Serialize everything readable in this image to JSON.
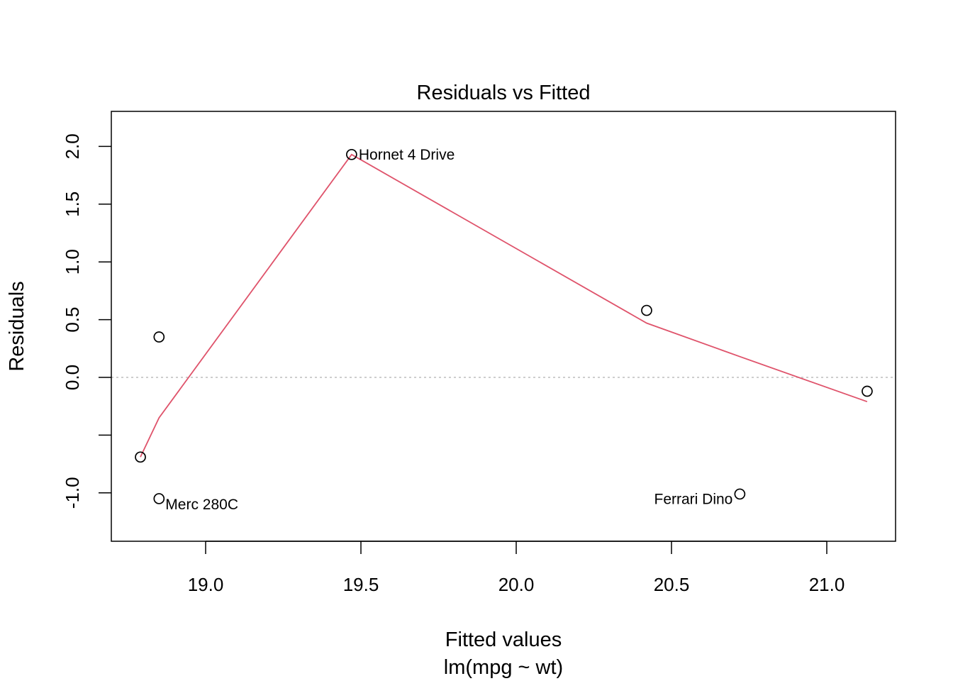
{
  "chart_data": {
    "type": "scatter",
    "title": "Residuals vs Fitted",
    "xlabel": "Fitted values",
    "subtitle": "lm(mpg ~ wt)",
    "ylabel": "Residuals",
    "xlim": [
      18.79,
      21.3
    ],
    "ylim": [
      -1.42,
      2.3
    ],
    "x_ticks": [
      {
        "value": 19.0,
        "label": "19.0"
      },
      {
        "value": 19.5,
        "label": "19.5"
      },
      {
        "value": 20.0,
        "label": "20.0"
      },
      {
        "value": 20.5,
        "label": "20.5"
      },
      {
        "value": 21.0,
        "label": "21.0"
      }
    ],
    "y_ticks": [
      {
        "value": -1.0,
        "label": "-1.0"
      },
      {
        "value": -0.5,
        "label": ""
      },
      {
        "value": 0.0,
        "label": "0.0"
      },
      {
        "value": 0.5,
        "label": "0.5"
      },
      {
        "value": 1.0,
        "label": "1.0"
      },
      {
        "value": 1.5,
        "label": "1.5"
      },
      {
        "value": 2.0,
        "label": "2.0"
      }
    ],
    "points": [
      {
        "x": 18.79,
        "y": -0.69,
        "label": ""
      },
      {
        "x": 18.85,
        "y": 0.35,
        "label": ""
      },
      {
        "x": 18.85,
        "y": -1.05,
        "label": "Merc 280C"
      },
      {
        "x": 19.47,
        "y": 1.93,
        "label": "Hornet 4 Drive"
      },
      {
        "x": 20.42,
        "y": 0.58,
        "label": ""
      },
      {
        "x": 20.72,
        "y": -1.01,
        "label": "Ferrari Dino"
      },
      {
        "x": 21.13,
        "y": -0.12,
        "label": ""
      }
    ],
    "smooth_line": {
      "x": [
        18.79,
        18.85,
        19.47,
        20.42,
        20.72,
        21.13
      ],
      "y": [
        -0.69,
        -0.35,
        1.93,
        0.47,
        0.18,
        -0.21
      ],
      "color": "#DF536B"
    },
    "reference_line": {
      "y": 0.0,
      "style": "dotted",
      "color": "#BEBEBE"
    },
    "grid": false,
    "legend": "none"
  }
}
